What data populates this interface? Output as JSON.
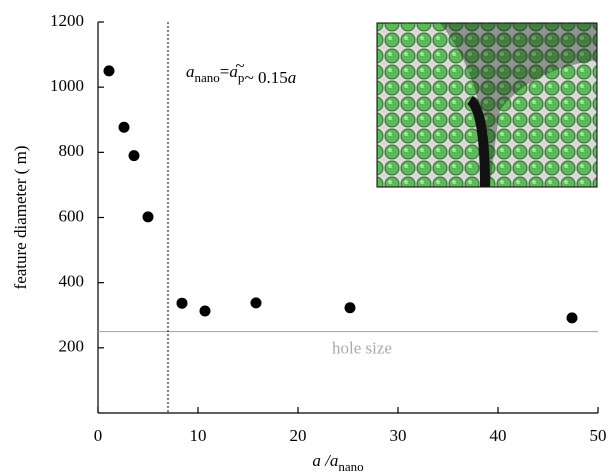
{
  "chart_data": {
    "type": "scatter",
    "x_label": {
      "main": "a /a",
      "sub": "nano"
    },
    "y_label": "feature diameter ( m)",
    "x": [
      1.1,
      2.6,
      3.6,
      5.0,
      8.4,
      10.7,
      15.8,
      25.2,
      47.4
    ],
    "series": [
      {
        "color": "#000000",
        "values": [
          1050,
          877,
          790,
          602,
          337,
          313,
          338,
          323,
          292
        ]
      }
    ],
    "xlim": [
      0,
      50
    ],
    "xticks": [
      0,
      10,
      20,
      30,
      40,
      50
    ],
    "ylim": [
      0,
      1200
    ],
    "yticks": [
      200,
      400,
      600,
      800,
      1000,
      1200
    ],
    "hline": {
      "value": 250,
      "label": "hole size",
      "color": "#aaaaaa"
    },
    "vline": {
      "value": 7
    },
    "annotation": [
      {
        "text": "a",
        "italic": true
      },
      {
        "text": "nano",
        "sub": true
      },
      {
        "text": "="
      },
      {
        "text": "a",
        "italic": true
      },
      {
        "text": "p",
        "sub": true
      },
      {
        "text": "~"
      },
      {
        "text": "~ 0.15"
      },
      {
        "text": "a",
        "italic": true
      }
    ]
  }
}
